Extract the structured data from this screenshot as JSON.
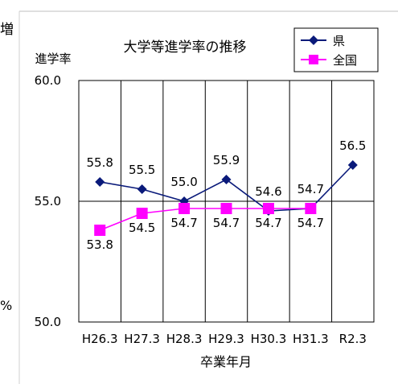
{
  "chart_data": {
    "type": "line",
    "title": "大学等進学率の推移",
    "ylabel": "進学率",
    "xlabel": "卒業年月",
    "categories": [
      "H26.3",
      "H27.3",
      "H28.3",
      "H29.3",
      "H30.3",
      "H31.3",
      "R2.3"
    ],
    "ylim": [
      50.0,
      60.0
    ],
    "yticks": [
      "50.0",
      "55.0",
      "60.0"
    ],
    "grid": true,
    "legend_position": "top-right",
    "series": [
      {
        "name": "県",
        "color": "#0a1a7a",
        "marker": "diamond",
        "values": [
          55.8,
          55.5,
          55.0,
          55.9,
          54.6,
          54.7,
          56.5
        ],
        "labels": [
          "55.8",
          "55.5",
          "55.0",
          "55.9",
          "54.6",
          "54.7",
          "56.5"
        ]
      },
      {
        "name": "全国",
        "color": "#ff00ff",
        "marker": "square",
        "values": [
          53.8,
          54.5,
          54.7,
          54.7,
          54.7,
          54.7,
          null
        ],
        "labels": [
          "53.8",
          "54.5",
          "54.7",
          "54.7",
          "54.7",
          "54.7",
          null
        ]
      }
    ]
  },
  "edge_fragments": {
    "left_top": "増",
    "left_mid": "%"
  }
}
